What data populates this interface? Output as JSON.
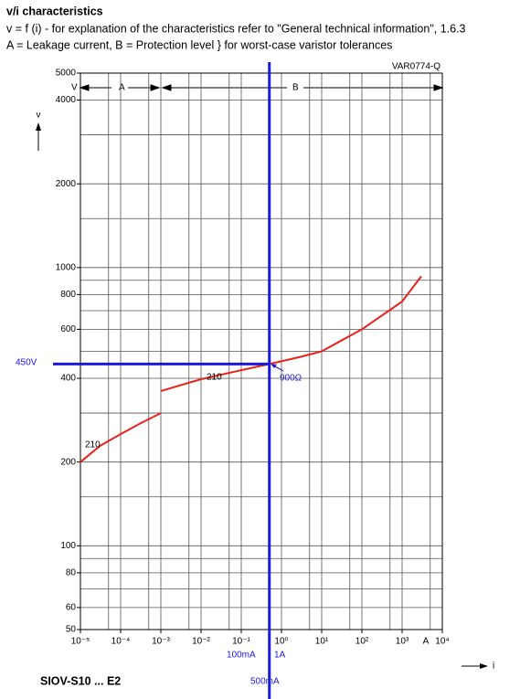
{
  "heading": "v/i characteristics",
  "notes": [
    "v = f (i) - for explanation of the characteristics refer to \"General technical information\", 1.6.3",
    "A = Leakage current, B = Protection level } for worst-case varistor tolerances"
  ],
  "footer": "SIOV-S10 ... E2",
  "chart_data": {
    "type": "line",
    "log_x": true,
    "log_y": true,
    "code": "VAR0774-Q",
    "x_label": "i",
    "y_label": "v",
    "x_unit": "A",
    "y_unit": "V",
    "regions": [
      "A",
      "B"
    ],
    "xlim": [
      1e-05,
      10000
    ],
    "ylim": [
      50,
      5000
    ],
    "xticks": [
      {
        "value": 1e-05,
        "label": "10⁻⁵"
      },
      {
        "value": 0.0001,
        "label": "10⁻⁴"
      },
      {
        "value": 0.001,
        "label": "10⁻³"
      },
      {
        "value": 0.01,
        "label": "10⁻²"
      },
      {
        "value": 0.1,
        "label": "10⁻¹"
      },
      {
        "value": 1,
        "label": "10⁰"
      },
      {
        "value": 10,
        "label": "10¹"
      },
      {
        "value": 100,
        "label": "10²"
      },
      {
        "value": 1000,
        "label": "10³"
      },
      {
        "value": 10000,
        "label": "10⁴"
      }
    ],
    "yticks": [
      50,
      60,
      80,
      100,
      200,
      400,
      600,
      800,
      1000,
      2000,
      4000,
      5000
    ],
    "xgrid": [
      1e-05,
      5e-05,
      0.0001,
      0.0005,
      0.001,
      0.005,
      0.01,
      0.05,
      0.1,
      0.5,
      1,
      5,
      10,
      50,
      100,
      500,
      1000,
      5000,
      10000
    ],
    "ygrid": [
      50,
      60,
      70,
      80,
      90,
      100,
      150,
      200,
      300,
      400,
      500,
      600,
      700,
      800,
      900,
      1000,
      1500,
      2000,
      3000,
      4000,
      5000
    ],
    "series": [
      {
        "name": "210",
        "color": "#e8231c",
        "x": [
          1e-05,
          3e-05,
          0.0001,
          0.0003,
          0.001,
          null,
          0.001,
          0.01,
          0.1,
          0.5,
          3,
          10,
          100,
          1000,
          3000
        ],
        "values": [
          200,
          228,
          252,
          275,
          300,
          null,
          360,
          397,
          428,
          450,
          478,
          500,
          600,
          755,
          930
        ]
      }
    ],
    "marker": {
      "x": 0.5,
      "y": 450,
      "color": "#1a1adb",
      "x_label": "500mA",
      "y_label": "450V",
      "annotation": "900Ω"
    },
    "x_annotations": [
      "100mA",
      "1A"
    ]
  }
}
